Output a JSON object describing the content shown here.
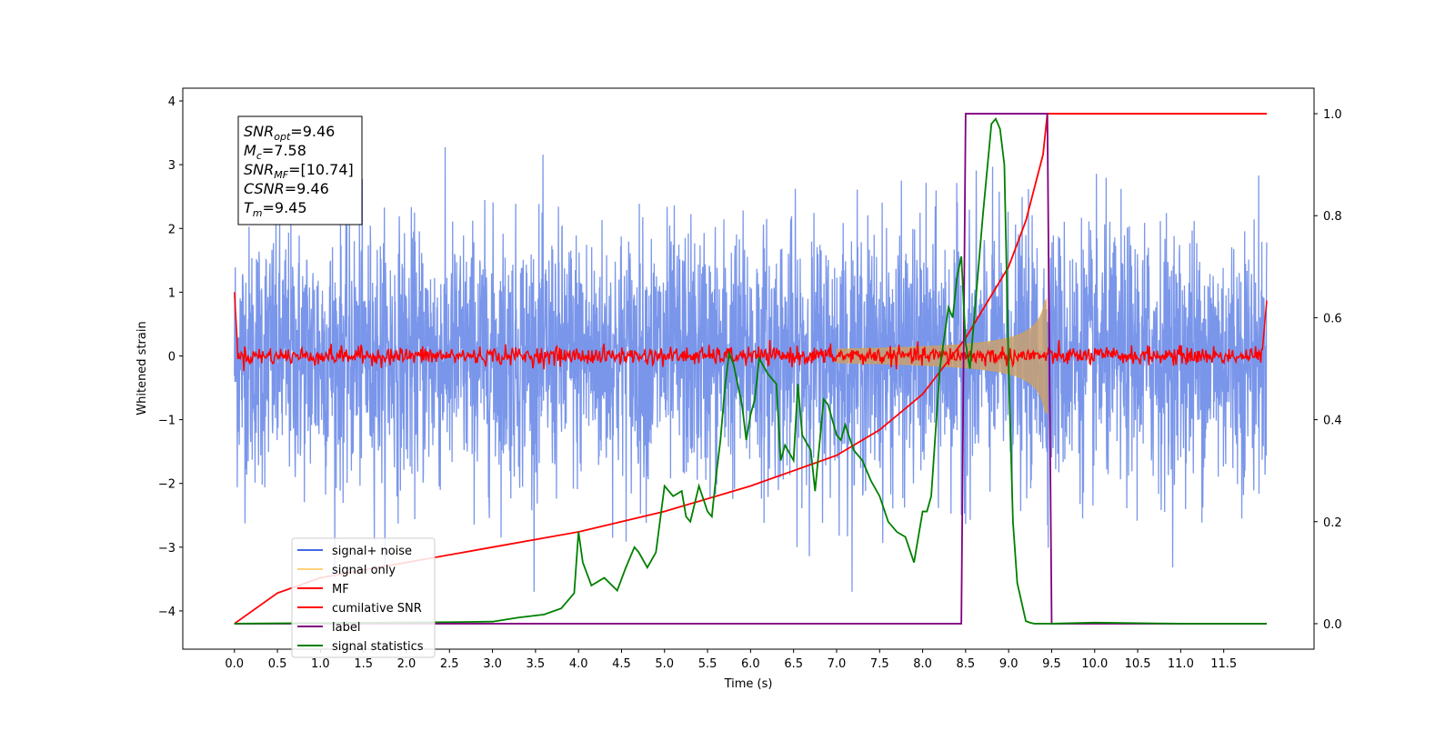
{
  "chart_data": {
    "type": "line",
    "xlabel": "Time (s)",
    "ylabel": "Whitened strain",
    "xlim": [
      -0.6,
      12.55
    ],
    "ylim": [
      -4.6,
      4.2
    ],
    "ylim_right": [
      -0.05,
      1.05
    ],
    "x_ticks": [
      "0.0",
      "0.5",
      "1.0",
      "1.5",
      "2.0",
      "2.5",
      "3.0",
      "3.5",
      "4.0",
      "4.5",
      "5.0",
      "5.5",
      "6.0",
      "6.5",
      "7.0",
      "7.5",
      "8.0",
      "8.5",
      "9.0",
      "9.5",
      "10.0",
      "10.5",
      "11.0",
      "11.5"
    ],
    "y_ticks": [
      "4",
      "3",
      "2",
      "1",
      "0",
      "−1",
      "−2",
      "−3",
      "−4"
    ],
    "y_ticks_right": [
      "1.0",
      "0.8",
      "0.6",
      "0.4",
      "0.2",
      "0.0"
    ],
    "grid": false,
    "legend_position": "lower-left",
    "stats_box": [
      {
        "base": "SNR",
        "sub": "opt",
        "value": "=9.46"
      },
      {
        "base": "M",
        "sub": "c",
        "value": "=7.58"
      },
      {
        "base": "SNR",
        "sub": "MF",
        "value": "=[10.74]"
      },
      {
        "base": "CSNR",
        "sub": "",
        "value": "=9.46"
      },
      {
        "base": "T",
        "sub": "m",
        "value": "=9.45"
      }
    ],
    "series": [
      {
        "name": "signal+ noise",
        "axis": "left",
        "color": "#4169e1",
        "description": "noise std ~1 over 0–12 s"
      },
      {
        "name": "signal only",
        "axis": "left",
        "color": "#ffa500",
        "chirp_end": 9.45,
        "peak_amplitude": 0.9
      },
      {
        "name": "MF",
        "axis": "left",
        "color": "#ff0000",
        "level": 0.0,
        "edge_values": [
          1.0,
          0.87
        ]
      },
      {
        "name": "cumilative SNR",
        "axis": "right",
        "color": "#ff0000",
        "x": [
          0.0,
          0.5,
          1.0,
          2.0,
          3.0,
          4.0,
          5.0,
          6.0,
          6.5,
          7.0,
          7.5,
          8.0,
          8.5,
          9.0,
          9.2,
          9.4,
          9.45,
          12.0
        ],
        "y": [
          0.0,
          0.06,
          0.09,
          0.12,
          0.15,
          0.18,
          0.22,
          0.27,
          0.3,
          0.33,
          0.38,
          0.45,
          0.56,
          0.7,
          0.79,
          0.92,
          1.0,
          1.0
        ]
      },
      {
        "name": "label",
        "axis": "right",
        "color": "#800080",
        "x": [
          0.0,
          8.45,
          8.5,
          9.45,
          9.5,
          12.0
        ],
        "y": [
          0.0,
          0.0,
          1.0,
          1.0,
          0.0,
          0.0
        ]
      },
      {
        "name": "signal statistics",
        "axis": "right",
        "color": "#008000",
        "x": [
          0.0,
          2.5,
          3.0,
          3.3,
          3.6,
          3.8,
          3.95,
          4.0,
          4.05,
          4.15,
          4.3,
          4.45,
          4.55,
          4.65,
          4.7,
          4.8,
          4.9,
          5.0,
          5.1,
          5.2,
          5.25,
          5.3,
          5.4,
          5.5,
          5.55,
          5.6,
          5.65,
          5.7,
          5.75,
          5.8,
          5.9,
          5.95,
          6.0,
          6.05,
          6.1,
          6.2,
          6.3,
          6.35,
          6.4,
          6.5,
          6.55,
          6.6,
          6.7,
          6.75,
          6.85,
          6.9,
          7.0,
          7.05,
          7.1,
          7.2,
          7.3,
          7.4,
          7.5,
          7.6,
          7.7,
          7.8,
          7.9,
          8.0,
          8.05,
          8.1,
          8.2,
          8.3,
          8.35,
          8.4,
          8.45,
          8.5,
          8.55,
          8.6,
          8.7,
          8.8,
          8.85,
          8.9,
          8.95,
          9.0,
          9.05,
          9.1,
          9.2,
          9.25,
          9.3,
          9.5,
          10.0,
          11.0,
          12.0
        ],
        "y": [
          0.0,
          0.003,
          0.004,
          0.012,
          0.018,
          0.03,
          0.06,
          0.18,
          0.12,
          0.075,
          0.09,
          0.065,
          0.11,
          0.15,
          0.14,
          0.11,
          0.14,
          0.27,
          0.25,
          0.26,
          0.21,
          0.2,
          0.27,
          0.22,
          0.21,
          0.29,
          0.36,
          0.46,
          0.53,
          0.51,
          0.43,
          0.36,
          0.41,
          0.44,
          0.52,
          0.49,
          0.47,
          0.32,
          0.35,
          0.32,
          0.47,
          0.37,
          0.34,
          0.26,
          0.44,
          0.43,
          0.37,
          0.36,
          0.39,
          0.34,
          0.32,
          0.28,
          0.25,
          0.2,
          0.18,
          0.17,
          0.12,
          0.22,
          0.22,
          0.25,
          0.5,
          0.62,
          0.6,
          0.68,
          0.72,
          0.55,
          0.5,
          0.6,
          0.8,
          0.98,
          0.99,
          0.97,
          0.9,
          0.5,
          0.2,
          0.08,
          0.005,
          0.002,
          0.0,
          0.0,
          0.002,
          0.0,
          0.0
        ]
      }
    ]
  }
}
